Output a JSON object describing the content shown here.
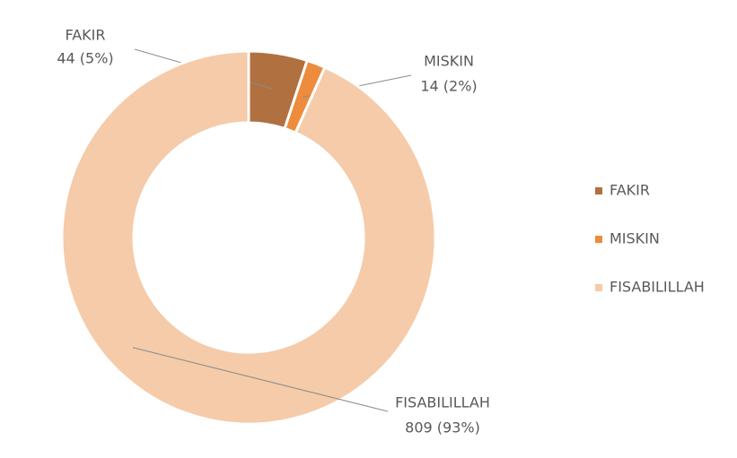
{
  "chart_data": {
    "type": "donut",
    "categories": [
      "FAKIR",
      "MISKIN",
      "FISABILILLAH"
    ],
    "values": [
      44,
      14,
      809
    ],
    "value_labels": [
      "44 (5%)",
      "14 (2%)",
      "809 (93%)"
    ],
    "colors": [
      "#b0703f",
      "#ec8c3c",
      "#f5cba9"
    ],
    "legend": "right"
  }
}
